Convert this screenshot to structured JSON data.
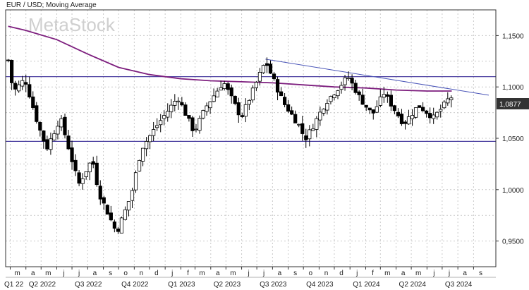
{
  "chart_data": {
    "type": "candlestick",
    "title": "EUR / USD; Moving Average",
    "watermark": "MetaStock",
    "last_price_label": "1,0877",
    "y_ticks": [
      "1,1500",
      "1,1000",
      "1,0500",
      "1,0000",
      "0,9500"
    ],
    "ylim": [
      0.925,
      1.175
    ],
    "month_labels": [
      "m",
      "a",
      "m",
      "j",
      "j",
      "a",
      "s",
      "o",
      "n",
      "d",
      "j",
      "f",
      "m",
      "a",
      "m",
      "j",
      "j",
      "a",
      "s",
      "o",
      "n",
      "d",
      "j",
      "f",
      "m",
      "a",
      "m",
      "j",
      "j",
      "a",
      "s"
    ],
    "quarter_labels": [
      "Q1 22",
      "Q2 2022",
      "Q3 2022",
      "Q4 2022",
      "Q1 2023",
      "Q2 2023",
      "Q3 2023",
      "Q4 2023",
      "Q1 2024",
      "Q2 2024",
      "Q3 2024"
    ],
    "horizontal_levels": [
      1.11,
      1.047
    ],
    "trendline": {
      "start_date": "2023-07-18",
      "start_value": 1.127,
      "end_date": "2024-10-01",
      "end_value": 1.092
    },
    "moving_average": {
      "dates": [
        "2022-02-25",
        "2022-04-01",
        "2022-06-01",
        "2022-08-01",
        "2022-10-01",
        "2022-12-01",
        "2023-02-01",
        "2023-04-01",
        "2023-06-01",
        "2023-08-01",
        "2023-10-01",
        "2023-12-01",
        "2024-02-01",
        "2024-04-01",
        "2024-06-01",
        "2024-07-20"
      ],
      "values": [
        1.159,
        1.155,
        1.146,
        1.132,
        1.119,
        1.112,
        1.108,
        1.106,
        1.105,
        1.104,
        1.102,
        1.1,
        1.099,
        1.097,
        1.096,
        1.096
      ]
    },
    "series_anchors": {
      "dates": [
        "2022-02-25",
        "2022-03-07",
        "2022-03-30",
        "2022-04-25",
        "2022-05-12",
        "2022-06-08",
        "2022-07-14",
        "2022-08-10",
        "2022-08-23",
        "2022-09-27",
        "2022-10-26",
        "2022-11-15",
        "2022-12-15",
        "2023-01-26",
        "2023-02-27",
        "2023-03-23",
        "2023-04-26",
        "2023-05-31",
        "2023-06-22",
        "2023-07-18",
        "2023-08-22",
        "2023-09-26",
        "2023-10-03",
        "2023-10-20",
        "2023-11-14",
        "2023-12-28",
        "2024-01-22",
        "2024-02-14",
        "2024-03-08",
        "2024-04-16",
        "2024-05-15",
        "2024-06-14",
        "2024-07-03",
        "2024-07-17",
        "2024-07-25"
      ],
      "values": [
        1.126,
        1.095,
        1.108,
        1.063,
        1.04,
        1.07,
        1.005,
        1.03,
        0.997,
        0.958,
        0.995,
        1.04,
        1.062,
        1.09,
        1.056,
        1.081,
        1.105,
        1.07,
        1.095,
        1.125,
        1.085,
        1.06,
        1.048,
        1.062,
        1.085,
        1.11,
        1.088,
        1.073,
        1.094,
        1.064,
        1.082,
        1.07,
        1.081,
        1.091,
        1.087
      ]
    }
  }
}
